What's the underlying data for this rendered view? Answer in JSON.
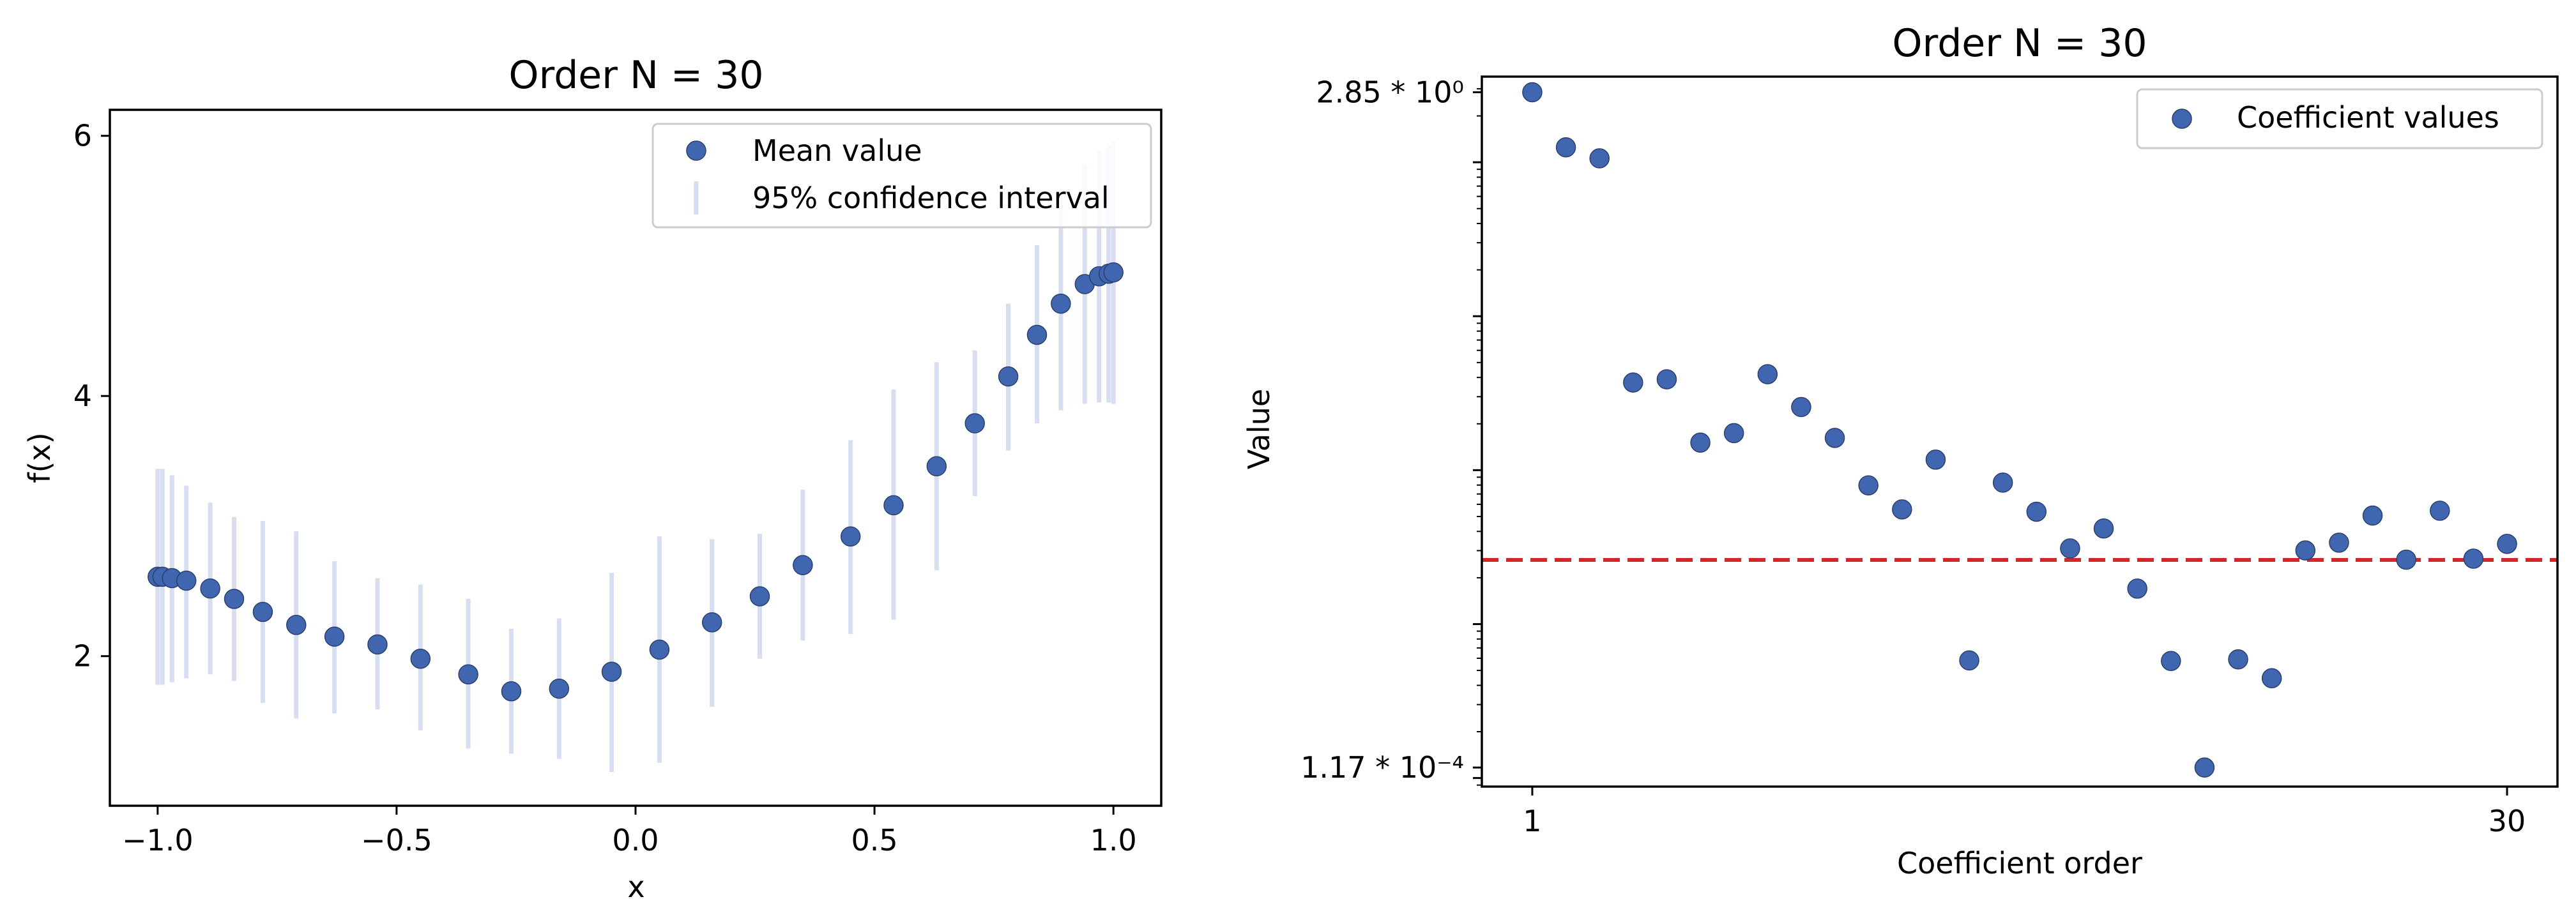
{
  "chart_data": [
    {
      "type": "scatter",
      "title": "Order N = 30",
      "xlabel": "x",
      "ylabel": "f(x)",
      "xlim": [
        -1.1,
        1.1
      ],
      "ylim": [
        0.85,
        6.2
      ],
      "x_ticks": [
        -1.0,
        -0.5,
        0.0,
        0.5,
        1.0
      ],
      "x_tick_labels": [
        "−1.0",
        "−0.5",
        "0.0",
        "0.5",
        "1.0"
      ],
      "y_ticks": [
        2,
        4,
        6
      ],
      "y_tick_labels": [
        "2",
        "4",
        "6"
      ],
      "legend": {
        "placement": "top-right",
        "entries": [
          "Mean value",
          "95% confidence interval"
        ]
      },
      "series": [
        {
          "name": "Mean value",
          "x": [
            -1.0,
            -0.99,
            -0.97,
            -0.94,
            -0.89,
            -0.84,
            -0.78,
            -0.71,
            -0.63,
            -0.54,
            -0.45,
            -0.35,
            -0.26,
            -0.16,
            -0.05,
            0.05,
            0.16,
            0.26,
            0.35,
            0.45,
            0.54,
            0.63,
            0.71,
            0.78,
            0.84,
            0.89,
            0.94,
            0.97,
            0.99,
            1.0
          ],
          "y": [
            2.61,
            2.61,
            2.6,
            2.58,
            2.52,
            2.44,
            2.34,
            2.24,
            2.15,
            2.09,
            1.98,
            1.86,
            1.73,
            1.75,
            1.88,
            2.05,
            2.26,
            2.46,
            2.7,
            2.92,
            3.16,
            3.46,
            3.79,
            4.15,
            4.47,
            4.71,
            4.86,
            4.92,
            4.94,
            4.95
          ],
          "lower": [
            1.78,
            1.78,
            1.8,
            1.83,
            1.86,
            1.81,
            1.64,
            1.52,
            1.56,
            1.59,
            1.43,
            1.29,
            1.25,
            1.21,
            1.11,
            1.18,
            1.61,
            1.98,
            2.12,
            2.17,
            2.28,
            2.66,
            3.23,
            3.58,
            3.79,
            3.89,
            3.94,
            3.95,
            3.95,
            3.94
          ],
          "upper": [
            3.44,
            3.44,
            3.39,
            3.31,
            3.18,
            3.07,
            3.04,
            2.96,
            2.73,
            2.6,
            2.55,
            2.44,
            2.21,
            2.29,
            2.64,
            2.92,
            2.9,
            2.94,
            3.28,
            3.66,
            4.05,
            4.26,
            4.35,
            4.71,
            5.16,
            5.52,
            5.78,
            5.89,
            5.93,
            5.96
          ]
        }
      ]
    },
    {
      "type": "scatter",
      "title": "Order N = 30",
      "xlabel": "Coefficient order",
      "ylabel": "Value",
      "scale": {
        "y": "log"
      },
      "xlim": [
        -0.5,
        31.5
      ],
      "ylim": [
        8.8e-05,
        3.6
      ],
      "x_ticks": [
        1,
        30
      ],
      "x_tick_labels": [
        "1",
        "30"
      ],
      "y_ticks": [
        2.85,
        0.000117
      ],
      "y_tick_labels": [
        "2.85 * 10⁰",
        "1.17 * 10⁻⁴"
      ],
      "legend": {
        "placement": "top-right",
        "entries": [
          "Coefficient values"
        ]
      },
      "threshold": {
        "y": 0.00261,
        "color": "#d62728",
        "style": "dashed"
      },
      "series": [
        {
          "name": "Coefficient values",
          "x": [
            1,
            2,
            3,
            4,
            5,
            6,
            7,
            8,
            9,
            10,
            11,
            12,
            13,
            14,
            15,
            16,
            17,
            18,
            19,
            20,
            21,
            22,
            23,
            24,
            25,
            26,
            27,
            28,
            29,
            30
          ],
          "y": [
            2.85,
            1.25,
            1.06,
            0.0371,
            0.0389,
            0.0151,
            0.0174,
            0.042,
            0.0257,
            0.0162,
            0.00796,
            0.00556,
            0.0117,
            0.000581,
            0.0083,
            0.00537,
            0.0031,
            0.00418,
            0.0017,
            0.000576,
            0.000117,
            0.00059,
            0.000445,
            0.00301,
            0.00338,
            0.00507,
            0.00262,
            0.00545,
            0.00266,
            0.00332
          ]
        }
      ],
      "colors": {
        "point": "#4166b0",
        "threshold": "#d62728"
      }
    }
  ]
}
